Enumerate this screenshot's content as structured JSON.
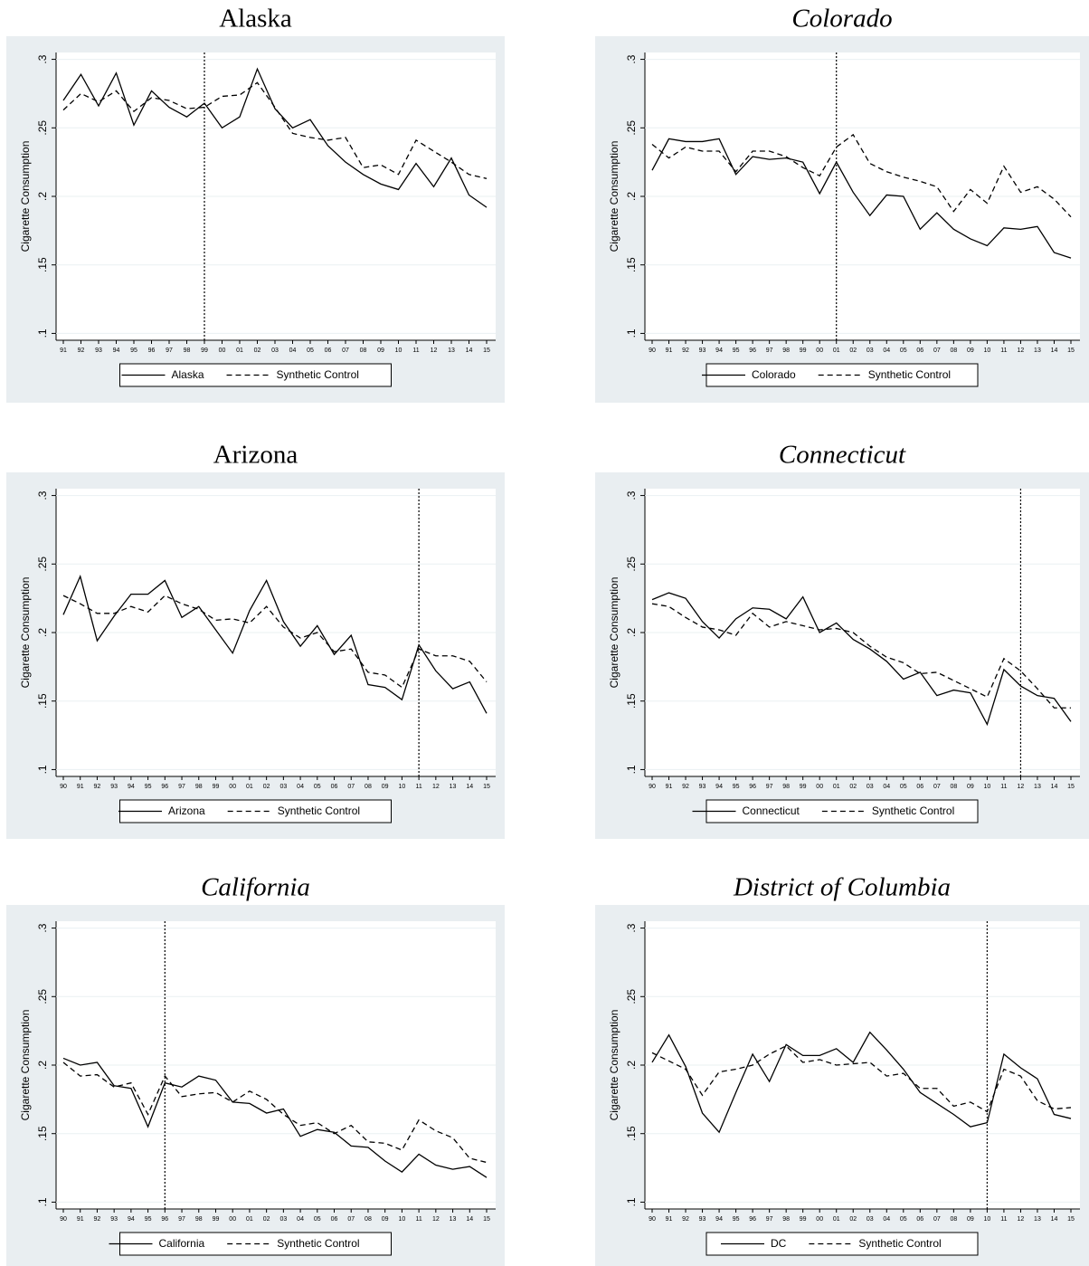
{
  "chart_data": [
    {
      "type": "line",
      "title": "Alaska",
      "title_style": "normal",
      "ylabel": "Cigarette Consumption",
      "categories": [
        "91",
        "92",
        "93",
        "94",
        "95",
        "96",
        "97",
        "98",
        "99",
        "00",
        "01",
        "02",
        "03",
        "04",
        "05",
        "06",
        "07",
        "08",
        "09",
        "10",
        "11",
        "12",
        "13",
        "14",
        "15"
      ],
      "series": [
        {
          "name": "Alaska",
          "color": "#000000",
          "dash": false,
          "values": [
            0.27,
            0.289,
            0.266,
            0.29,
            0.252,
            0.277,
            0.265,
            0.258,
            0.268,
            0.25,
            0.258,
            0.293,
            0.264,
            0.25,
            0.256,
            0.237,
            0.225,
            0.216,
            0.209,
            0.205,
            0.224,
            0.207,
            0.228,
            0.201,
            0.192
          ]
        },
        {
          "name": "Synthetic Control",
          "color": "#000000",
          "dash": true,
          "values": [
            0.263,
            0.275,
            0.269,
            0.277,
            0.262,
            0.272,
            0.27,
            0.264,
            0.265,
            0.273,
            0.274,
            0.283,
            0.265,
            0.246,
            0.243,
            0.241,
            0.243,
            0.221,
            0.223,
            0.216,
            0.241,
            0.233,
            0.225,
            0.216,
            0.213
          ]
        }
      ],
      "ylim": [
        0.095,
        0.305
      ],
      "yticks": [
        {
          "value": 0.1,
          "label": ".1"
        },
        {
          "value": 0.15,
          "label": ".15"
        },
        {
          "value": 0.2,
          "label": ".2"
        },
        {
          "value": 0.25,
          "label": ".25"
        },
        {
          "value": 0.3,
          "label": ".3"
        }
      ],
      "grid": true,
      "vline": "99",
      "legend": "bottom"
    },
    {
      "type": "line",
      "title": "Colorado",
      "title_style": "italic",
      "ylabel": "Cigarette Consumption",
      "categories": [
        "90",
        "91",
        "92",
        "93",
        "94",
        "95",
        "96",
        "97",
        "98",
        "99",
        "00",
        "01",
        "02",
        "03",
        "04",
        "05",
        "06",
        "07",
        "08",
        "09",
        "10",
        "11",
        "12",
        "13",
        "14",
        "15"
      ],
      "series": [
        {
          "name": "Colorado",
          "color": "#000000",
          "dash": false,
          "values": [
            0.219,
            0.242,
            0.24,
            0.24,
            0.242,
            0.216,
            0.229,
            0.227,
            0.228,
            0.225,
            0.202,
            0.225,
            0.203,
            0.186,
            0.201,
            0.2,
            0.176,
            0.188,
            0.176,
            0.169,
            0.164,
            0.177,
            0.176,
            0.178,
            0.159,
            0.155
          ]
        },
        {
          "name": "Synthetic Control",
          "color": "#000000",
          "dash": true,
          "values": [
            0.238,
            0.228,
            0.236,
            0.233,
            0.233,
            0.218,
            0.233,
            0.233,
            0.229,
            0.221,
            0.215,
            0.236,
            0.245,
            0.224,
            0.218,
            0.214,
            0.211,
            0.207,
            0.189,
            0.205,
            0.195,
            0.222,
            0.203,
            0.207,
            0.198,
            0.185
          ]
        }
      ],
      "ylim": [
        0.095,
        0.305
      ],
      "yticks": [
        {
          "value": 0.1,
          "label": ".1"
        },
        {
          "value": 0.15,
          "label": ".15"
        },
        {
          "value": 0.2,
          "label": ".2"
        },
        {
          "value": 0.25,
          "label": ".25"
        },
        {
          "value": 0.3,
          "label": ".3"
        }
      ],
      "grid": true,
      "vline": "01",
      "legend": "bottom"
    },
    {
      "type": "line",
      "title": "Arizona",
      "title_style": "normal",
      "ylabel": "Cigarette Consumption",
      "categories": [
        "90",
        "91",
        "92",
        "93",
        "94",
        "95",
        "96",
        "97",
        "98",
        "99",
        "00",
        "01",
        "02",
        "03",
        "04",
        "05",
        "06",
        "07",
        "08",
        "09",
        "10",
        "11",
        "12",
        "13",
        "14",
        "15"
      ],
      "series": [
        {
          "name": "Arizona",
          "color": "#000000",
          "dash": false,
          "values": [
            0.213,
            0.241,
            0.194,
            0.212,
            0.228,
            0.228,
            0.238,
            0.211,
            0.219,
            0.202,
            0.185,
            0.216,
            0.238,
            0.208,
            0.19,
            0.205,
            0.184,
            0.198,
            0.162,
            0.16,
            0.151,
            0.191,
            0.172,
            0.159,
            0.164,
            0.141
          ]
        },
        {
          "name": "Synthetic Control",
          "color": "#000000",
          "dash": true,
          "values": [
            0.227,
            0.221,
            0.214,
            0.214,
            0.219,
            0.215,
            0.227,
            0.221,
            0.217,
            0.209,
            0.21,
            0.207,
            0.219,
            0.204,
            0.196,
            0.2,
            0.186,
            0.188,
            0.171,
            0.169,
            0.16,
            0.188,
            0.183,
            0.183,
            0.179,
            0.164
          ]
        }
      ],
      "ylim": [
        0.095,
        0.305
      ],
      "yticks": [
        {
          "value": 0.1,
          "label": ".1"
        },
        {
          "value": 0.15,
          "label": ".15"
        },
        {
          "value": 0.2,
          "label": ".2"
        },
        {
          "value": 0.25,
          "label": ".25"
        },
        {
          "value": 0.3,
          "label": ".3"
        }
      ],
      "grid": true,
      "vline": "11",
      "legend": "bottom"
    },
    {
      "type": "line",
      "title": "Connecticut",
      "title_style": "italic",
      "ylabel": "Cigarette Consumption",
      "categories": [
        "90",
        "91",
        "92",
        "93",
        "94",
        "95",
        "96",
        "97",
        "98",
        "99",
        "00",
        "01",
        "02",
        "03",
        "04",
        "05",
        "06",
        "07",
        "08",
        "09",
        "10",
        "11",
        "12",
        "13",
        "14",
        "15"
      ],
      "series": [
        {
          "name": "Connecticut",
          "color": "#000000",
          "dash": false,
          "values": [
            0.224,
            0.229,
            0.225,
            0.208,
            0.196,
            0.21,
            0.218,
            0.217,
            0.21,
            0.226,
            0.2,
            0.207,
            0.195,
            0.188,
            0.179,
            0.166,
            0.171,
            0.154,
            0.158,
            0.156,
            0.133,
            0.173,
            0.161,
            0.154,
            0.152,
            0.135
          ]
        },
        {
          "name": "Synthetic Control",
          "color": "#000000",
          "dash": true,
          "values": [
            0.221,
            0.219,
            0.211,
            0.204,
            0.202,
            0.198,
            0.214,
            0.204,
            0.208,
            0.205,
            0.202,
            0.203,
            0.2,
            0.19,
            0.182,
            0.178,
            0.17,
            0.171,
            0.165,
            0.159,
            0.153,
            0.181,
            0.172,
            0.159,
            0.145,
            0.145
          ]
        }
      ],
      "ylim": [
        0.095,
        0.305
      ],
      "yticks": [
        {
          "value": 0.1,
          "label": ".1"
        },
        {
          "value": 0.15,
          "label": ".15"
        },
        {
          "value": 0.2,
          "label": ".2"
        },
        {
          "value": 0.25,
          "label": ".25"
        },
        {
          "value": 0.3,
          "label": ".3"
        }
      ],
      "grid": true,
      "vline": "12",
      "legend": "bottom"
    },
    {
      "type": "line",
      "title": "California",
      "title_style": "italic",
      "ylabel": "Cigarette Consumption",
      "categories": [
        "90",
        "91",
        "92",
        "93",
        "94",
        "95",
        "96",
        "97",
        "98",
        "99",
        "00",
        "01",
        "02",
        "03",
        "04",
        "05",
        "06",
        "07",
        "08",
        "09",
        "10",
        "11",
        "12",
        "13",
        "14",
        "15"
      ],
      "series": [
        {
          "name": "California",
          "color": "#000000",
          "dash": false,
          "values": [
            0.205,
            0.2,
            0.202,
            0.185,
            0.183,
            0.155,
            0.187,
            0.184,
            0.192,
            0.189,
            0.173,
            0.172,
            0.165,
            0.168,
            0.148,
            0.153,
            0.151,
            0.141,
            0.14,
            0.13,
            0.122,
            0.135,
            0.127,
            0.124,
            0.126,
            0.118
          ]
        },
        {
          "name": "Synthetic Control",
          "color": "#000000",
          "dash": true,
          "values": [
            0.202,
            0.192,
            0.193,
            0.184,
            0.187,
            0.164,
            0.192,
            0.177,
            0.179,
            0.18,
            0.173,
            0.181,
            0.175,
            0.164,
            0.156,
            0.158,
            0.15,
            0.156,
            0.144,
            0.143,
            0.138,
            0.16,
            0.152,
            0.147,
            0.132,
            0.129
          ]
        }
      ],
      "ylim": [
        0.095,
        0.305
      ],
      "yticks": [
        {
          "value": 0.1,
          "label": ".1"
        },
        {
          "value": 0.15,
          "label": ".15"
        },
        {
          "value": 0.2,
          "label": ".2"
        },
        {
          "value": 0.25,
          "label": ".25"
        },
        {
          "value": 0.3,
          "label": ".3"
        }
      ],
      "grid": true,
      "vline": "96",
      "legend": "bottom"
    },
    {
      "type": "line",
      "title": "District of Columbia",
      "title_style": "italic",
      "ylabel": "Cigarette Consumption",
      "categories": [
        "90",
        "91",
        "92",
        "93",
        "94",
        "95",
        "96",
        "97",
        "98",
        "99",
        "00",
        "01",
        "02",
        "03",
        "04",
        "05",
        "06",
        "07",
        "08",
        "09",
        "10",
        "11",
        "12",
        "13",
        "14",
        "15"
      ],
      "series": [
        {
          "name": "DC",
          "color": "#000000",
          "dash": false,
          "values": [
            0.202,
            0.222,
            0.199,
            0.165,
            0.151,
            0.18,
            0.208,
            0.188,
            0.215,
            0.207,
            0.207,
            0.212,
            0.202,
            0.224,
            0.211,
            0.197,
            0.18,
            0.172,
            0.164,
            0.155,
            0.158,
            0.208,
            0.198,
            0.19,
            0.164,
            0.161
          ]
        },
        {
          "name": "Synthetic Control",
          "color": "#000000",
          "dash": true,
          "values": [
            0.209,
            0.203,
            0.197,
            0.178,
            0.195,
            0.197,
            0.2,
            0.208,
            0.214,
            0.202,
            0.204,
            0.2,
            0.201,
            0.202,
            0.192,
            0.194,
            0.183,
            0.183,
            0.17,
            0.173,
            0.166,
            0.197,
            0.192,
            0.174,
            0.168,
            0.169
          ]
        }
      ],
      "ylim": [
        0.095,
        0.305
      ],
      "yticks": [
        {
          "value": 0.1,
          "label": ".1"
        },
        {
          "value": 0.15,
          "label": ".15"
        },
        {
          "value": 0.2,
          "label": ".2"
        },
        {
          "value": 0.25,
          "label": ".25"
        },
        {
          "value": 0.3,
          "label": ".3"
        }
      ],
      "grid": true,
      "vline": "10",
      "legend": "bottom"
    }
  ]
}
